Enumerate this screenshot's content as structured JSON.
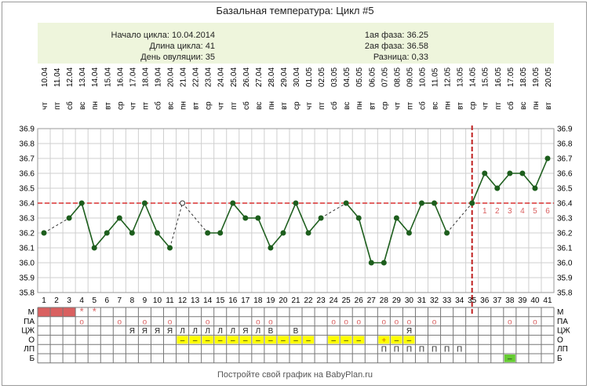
{
  "title": "Базальная температура: Цикл #5",
  "info": {
    "cycle_start": "Начало цикла: 10.04.2014",
    "cycle_length": "Длина цикла: 41",
    "ovulation_day": "День овуляции: 35",
    "phase1": "1ая фаза: 36.25",
    "phase2": "2ая фаза: 36.58",
    "difference": "Разница: 0,33"
  },
  "footer": "Постройте свой график на BabyPlan.ru",
  "colors": {
    "line": "#1d5e1d",
    "coverline": "#d93030",
    "menses": "#d96060",
    "mark": "#d96060",
    "highlight_yellow": "#ffff00",
    "highlight_green": "#66cc33",
    "info_bg": "#eef5dc"
  },
  "chart_data": {
    "type": "line",
    "days": [
      1,
      2,
      3,
      4,
      5,
      6,
      7,
      8,
      9,
      10,
      11,
      12,
      13,
      14,
      15,
      16,
      17,
      18,
      19,
      20,
      21,
      22,
      23,
      24,
      25,
      26,
      27,
      28,
      29,
      30,
      31,
      32,
      33,
      34,
      35,
      36,
      37,
      38,
      39,
      40,
      41
    ],
    "dates": [
      "10.04",
      "11.04",
      "12.04",
      "13.04",
      "14.04",
      "15.04",
      "16.04",
      "17.04",
      "18.04",
      "19.04",
      "20.04",
      "21.04",
      "22.04",
      "23.04",
      "24.04",
      "25.04",
      "26.04",
      "27.04",
      "28.04",
      "29.04",
      "30.04",
      "01.05",
      "02.05",
      "03.05",
      "04.05",
      "05.05",
      "06.05",
      "07.05",
      "08.05",
      "09.05",
      "10.05",
      "11.05",
      "12.05",
      "13.05",
      "14.05",
      "15.05",
      "16.05",
      "17.05",
      "18.05",
      "19.05",
      "20.05"
    ],
    "weekdays": [
      "чт",
      "пт",
      "сб",
      "вс",
      "пн",
      "вт",
      "ср",
      "чт",
      "пт",
      "сб",
      "вс",
      "пн",
      "вт",
      "ср",
      "чт",
      "пт",
      "сб",
      "вс",
      "пн",
      "вт",
      "ср",
      "чт",
      "пт",
      "сб",
      "вс",
      "пн",
      "вт",
      "ср",
      "чт",
      "пт",
      "сб",
      "вс",
      "пн",
      "вт",
      "ср",
      "чт",
      "пт",
      "сб",
      "вс",
      "пн",
      "вт"
    ],
    "temperatures": [
      36.2,
      null,
      36.3,
      36.4,
      36.1,
      36.2,
      36.3,
      36.2,
      36.4,
      36.2,
      36.1,
      36.4,
      null,
      36.2,
      36.2,
      36.4,
      36.3,
      36.3,
      36.1,
      36.2,
      36.4,
      36.2,
      36.3,
      null,
      36.4,
      36.3,
      36.0,
      36.0,
      36.3,
      36.2,
      36.4,
      36.4,
      36.2,
      null,
      36.4,
      36.6,
      36.5,
      36.6,
      36.6,
      36.5,
      36.7
    ],
    "excluded_days": [
      12
    ],
    "y_ticks": [
      "36.9",
      "36.8",
      "36.7",
      "36.6",
      "36.5",
      "36.4",
      "36.3",
      "36.2",
      "36.1",
      "36.0",
      "35.9",
      "35.8"
    ],
    "ylim": [
      35.8,
      36.9
    ],
    "coverline": 36.4,
    "ovulation_day": 35,
    "luteal_day_labels": [
      "1",
      "2",
      "3",
      "4",
      "5",
      "6"
    ],
    "grid": true,
    "rows": [
      {
        "label": "М",
        "marks": {
          "1": "■",
          "2": "■",
          "3": "■",
          "4": "*",
          "5": "*"
        }
      },
      {
        "label": "ПА",
        "marks": {
          "4": "o",
          "7": "o",
          "9": "o",
          "11": "o",
          "14": "o",
          "18": "o",
          "19": "o",
          "24": "o",
          "25": "o",
          "26": "o",
          "28": "o",
          "29": "o",
          "30": "o",
          "32": "o",
          "38": "o",
          "40": "o"
        }
      },
      {
        "label": "ЦЖ",
        "marks": {
          "8": "Я",
          "9": "Я",
          "10": "Я",
          "11": "Я",
          "12": "Л",
          "13": "Л",
          "14": "Л",
          "15": "Л",
          "16": "Л",
          "17": "Я",
          "18": "Л",
          "19": "В",
          "21": "В",
          "30": "Я"
        }
      },
      {
        "label": "О",
        "marks": {
          "12": "–",
          "13": "–",
          "14": "–",
          "15": "–",
          "16": "–",
          "17": "–",
          "18": "–",
          "19": "–",
          "20": "–",
          "21": "–",
          "22": "–",
          "24": "–",
          "25": "–",
          "26": "–",
          "28": "+",
          "29": "–",
          "30": "–"
        }
      },
      {
        "label": "ЛП",
        "marks": {
          "28": "П",
          "29": "П",
          "30": "П",
          "31": "П",
          "32": "П",
          "33": "П",
          "34": "П"
        }
      },
      {
        "label": "Б",
        "marks": {
          "38": "–"
        }
      }
    ]
  }
}
